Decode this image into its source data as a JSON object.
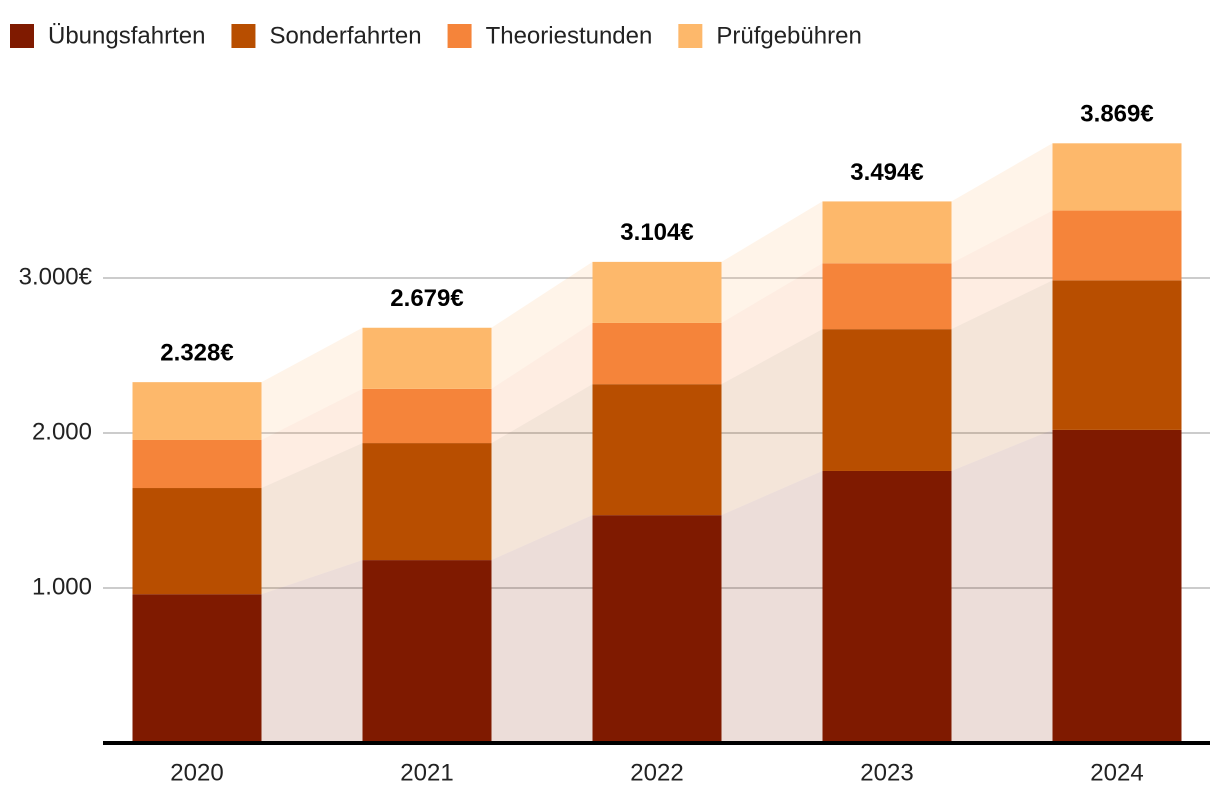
{
  "chart_data": {
    "type": "stacked-bar",
    "categories": [
      "2020",
      "2021",
      "2022",
      "2023",
      "2024"
    ],
    "series": [
      {
        "name": "Übungsfahrten",
        "color": "#7f1a00",
        "values": [
          960,
          1180,
          1470,
          1755,
          2020
        ]
      },
      {
        "name": "Sonderfahrten",
        "color": "#b84e00",
        "values": [
          685,
          755,
          845,
          915,
          965
        ]
      },
      {
        "name": "Theoriestunden",
        "color": "#f5843a",
        "values": [
          310,
          350,
          395,
          425,
          450
        ]
      },
      {
        "name": "Prüfgebühren",
        "color": "#fdb86b",
        "values": [
          373,
          394,
          394,
          399,
          434
        ]
      }
    ],
    "totals": {
      "values": [
        2328,
        2679,
        3104,
        3494,
        3869
      ],
      "value_labels": [
        "2.328€",
        "2.679€",
        "3.104€",
        "3.494€",
        "3.869€"
      ]
    },
    "ylim": [
      0,
      4300
    ],
    "yticks": [
      {
        "value": 1000,
        "label": "1.000"
      },
      {
        "value": 2000,
        "label": "2.000"
      },
      {
        "value": 3000,
        "label": "3.000€"
      }
    ],
    "grid": true,
    "legend": "top"
  }
}
